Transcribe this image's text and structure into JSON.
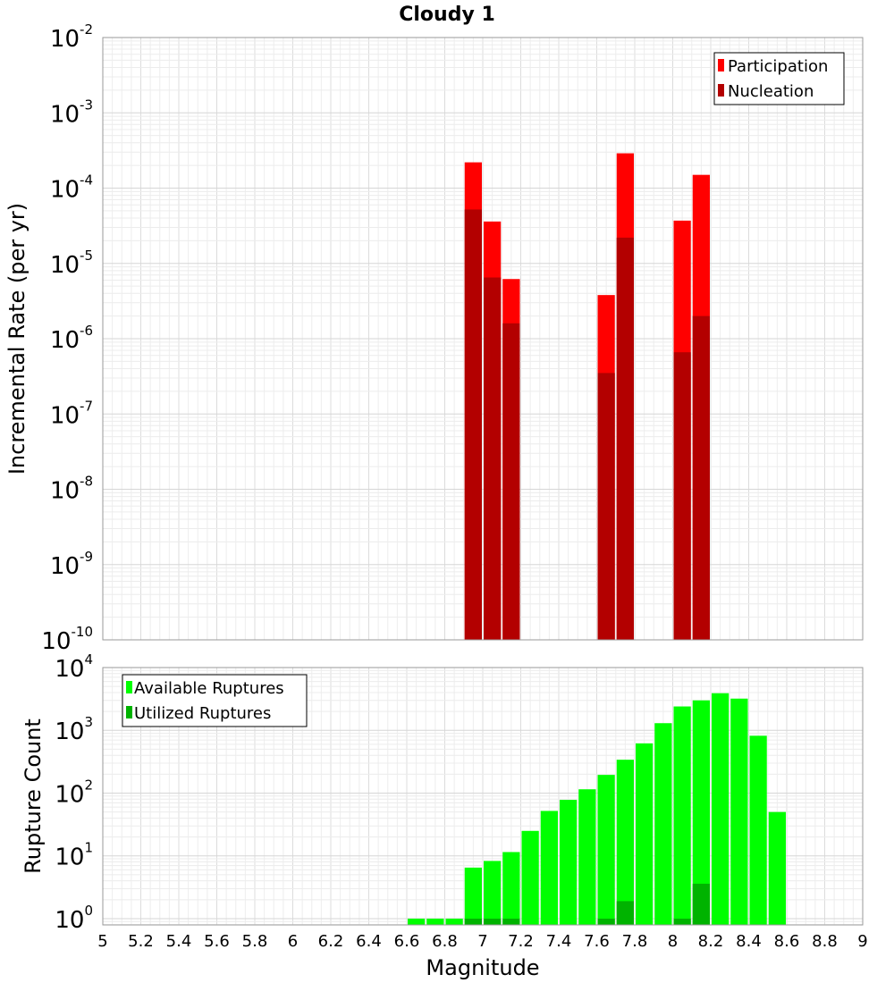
{
  "title": "Cloudy 1",
  "chart_data": [
    {
      "type": "bar",
      "ylabel": "Incremental Rate (per yr)",
      "yscale": "log",
      "ylim_exponents": [
        -10,
        -2
      ],
      "xlim": [
        5,
        9
      ],
      "grid": true,
      "legend_position": "top-right",
      "series": [
        {
          "name": "Participation",
          "color": "#ff0000",
          "x": [
            6.95,
            7.05,
            7.15,
            7.65,
            7.75,
            8.05,
            8.15
          ],
          "values": [
            0.00022,
            3.6e-05,
            6.2e-06,
            3.8e-06,
            0.00029,
            3.7e-05,
            0.00015
          ]
        },
        {
          "name": "Nucleation",
          "color": "#b30000",
          "x": [
            6.95,
            7.05,
            7.15,
            7.65,
            7.75,
            8.05,
            8.15
          ],
          "values": [
            5.2e-05,
            6.5e-06,
            1.6e-06,
            3.5e-07,
            2.2e-05,
            6.6e-07,
            2e-06
          ]
        }
      ]
    },
    {
      "type": "bar",
      "xlabel": "Magnitude",
      "ylabel": "Rupture Count",
      "yscale": "log",
      "ylim_exponents": [
        -0.1,
        4
      ],
      "xlim": [
        5,
        9
      ],
      "grid": true,
      "legend_position": "top-left",
      "xticks": [
        "5",
        "5.2",
        "5.4",
        "5.6",
        "5.8",
        "6",
        "6.2",
        "6.4",
        "6.6",
        "6.8",
        "7",
        "7.2",
        "7.4",
        "7.6",
        "7.8",
        "8",
        "8.2",
        "8.4",
        "8.6",
        "8.8",
        "9"
      ],
      "series": [
        {
          "name": "Available Ruptures",
          "color": "#00ff00",
          "x": [
            6.65,
            6.75,
            6.85,
            6.95,
            7.05,
            7.15,
            7.25,
            7.35,
            7.45,
            7.55,
            7.65,
            7.75,
            7.85,
            7.95,
            8.05,
            8.15,
            8.25,
            8.35,
            8.45,
            8.55
          ],
          "values": [
            1,
            1,
            1,
            6.5,
            8.3,
            11.5,
            25,
            52,
            78,
            115,
            195,
            340,
            620,
            1300,
            2400,
            3000,
            3900,
            3200,
            820,
            50
          ]
        },
        {
          "name": "Utilized Ruptures",
          "color": "#00b300",
          "x": [
            6.95,
            7.05,
            7.15,
            7.65,
            7.75,
            8.05,
            8.15
          ],
          "values": [
            1,
            1,
            1,
            1,
            1.9,
            1,
            3.6
          ]
        }
      ]
    }
  ]
}
